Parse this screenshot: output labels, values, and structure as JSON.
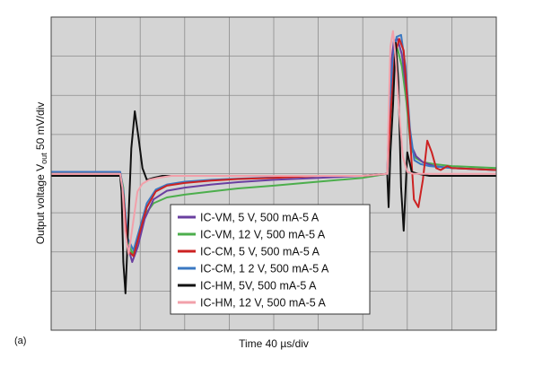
{
  "chart_data": {
    "type": "line",
    "panel_label": "(a)",
    "xlabel": "Time 40 µs/div",
    "ylabel": "Output voltage V",
    "ylabel_sub": "out",
    "ylabel_scale": "50 mV/div",
    "x_divisions": 10,
    "y_divisions": 8,
    "grid": true,
    "legend_position": "bottom-center",
    "series": [
      {
        "name": "IC-VM, 5 V, 500 mA-5 A",
        "color": "#6a3fa0",
        "x": [
          0,
          1.55,
          1.62,
          1.7,
          1.82,
          1.95,
          2.1,
          2.3,
          2.6,
          3.0,
          3.6,
          4.2,
          5.0,
          6.0,
          7.0,
          7.55,
          7.58,
          7.62,
          7.7,
          7.78,
          7.88,
          7.98,
          8.08,
          8.2,
          8.35,
          8.6,
          9.0,
          10
        ],
        "y": [
          0.1,
          0.1,
          -0.4,
          -1.7,
          -2.2,
          -1.8,
          -1.1,
          -0.6,
          -0.38,
          -0.3,
          -0.22,
          -0.16,
          -0.1,
          -0.05,
          0.0,
          0.05,
          1.2,
          2.7,
          3.45,
          3.5,
          3.1,
          2.2,
          0.8,
          0.5,
          0.35,
          0.25,
          0.2,
          0.15
        ]
      },
      {
        "name": "IC-VM, 12 V, 500 mA-5 A",
        "color": "#4cae4c",
        "x": [
          0,
          1.55,
          1.62,
          1.7,
          1.82,
          1.95,
          2.1,
          2.3,
          2.6,
          3.0,
          3.6,
          4.2,
          5.0,
          6.0,
          7.0,
          7.55,
          7.58,
          7.62,
          7.7,
          7.78,
          7.88,
          7.98,
          8.08,
          8.2,
          8.35,
          8.6,
          9.0,
          10
        ],
        "y": [
          0.08,
          0.08,
          -0.3,
          -1.5,
          -2.0,
          -1.6,
          -1.0,
          -0.7,
          -0.55,
          -0.48,
          -0.4,
          -0.32,
          -0.25,
          -0.15,
          -0.05,
          0.05,
          1.0,
          2.5,
          3.2,
          3.25,
          2.8,
          1.9,
          0.7,
          0.45,
          0.35,
          0.3,
          0.25,
          0.2
        ]
      },
      {
        "name": "IC-CM, 5 V, 500 mA-5 A",
        "color": "#cc2222",
        "x": [
          0,
          1.55,
          1.62,
          1.72,
          1.85,
          2.0,
          2.15,
          2.35,
          2.6,
          3.0,
          3.6,
          4.2,
          5.0,
          6.0,
          7.0,
          7.55,
          7.62,
          7.72,
          7.82,
          7.92,
          8.05,
          8.15,
          8.25,
          8.35,
          8.45,
          8.55,
          8.65,
          8.75,
          8.9,
          9.0,
          10
        ],
        "y": [
          0.05,
          0.05,
          -0.5,
          -1.9,
          -2.05,
          -1.4,
          -0.8,
          -0.4,
          -0.25,
          -0.18,
          -0.12,
          -0.08,
          -0.05,
          0.0,
          0.0,
          0.05,
          1.5,
          3.1,
          3.5,
          3.2,
          1.2,
          -0.6,
          -0.8,
          -0.1,
          0.9,
          0.6,
          0.2,
          0.15,
          0.25,
          0.2,
          0.15
        ]
      },
      {
        "name": "IC-CM, 1 2 V, 500 mA-5 A",
        "color": "#3a78c2",
        "x": [
          0,
          1.55,
          1.62,
          1.72,
          1.85,
          2.0,
          2.15,
          2.35,
          2.6,
          3.0,
          3.6,
          4.2,
          5.0,
          6.0,
          7.0,
          7.55,
          7.6,
          7.68,
          7.76,
          7.86,
          7.96,
          8.06,
          8.16,
          8.3,
          8.5,
          9.0,
          10
        ],
        "y": [
          0.1,
          0.1,
          -0.4,
          -1.6,
          -1.9,
          -1.3,
          -0.7,
          -0.35,
          -0.22,
          -0.15,
          -0.1,
          -0.07,
          -0.04,
          0.0,
          0.0,
          0.05,
          1.8,
          3.0,
          3.55,
          3.6,
          2.8,
          1.2,
          0.4,
          0.3,
          0.25,
          0.2,
          0.15
        ]
      },
      {
        "name": "IC-HM, 5V, 500 mA-5 A",
        "color": "#111111",
        "x": [
          0,
          1.55,
          1.58,
          1.62,
          1.67,
          1.72,
          1.8,
          1.88,
          1.96,
          2.05,
          2.15,
          2.3,
          2.5,
          3.0,
          4.0,
          5.0,
          6.0,
          7.0,
          7.55,
          7.58,
          7.62,
          7.68,
          7.74,
          7.8,
          7.86,
          7.92,
          8.0,
          8.1,
          8.25,
          8.5,
          9.0,
          10
        ],
        "y": [
          0.0,
          0.0,
          -0.4,
          -2.2,
          -3.0,
          -1.6,
          0.7,
          1.65,
          1.0,
          0.2,
          -0.1,
          -0.05,
          0.0,
          0.0,
          0.0,
          0.0,
          0.0,
          0.0,
          0.05,
          -0.8,
          0.6,
          1.8,
          3.4,
          2.4,
          -0.3,
          -1.4,
          0.6,
          0.1,
          0.05,
          0.0,
          0.0,
          0.0
        ]
      },
      {
        "name": "IC-HM, 12 V, 500 mA-5 A",
        "color": "#f2a0aa",
        "x": [
          0,
          1.55,
          1.6,
          1.66,
          1.74,
          1.84,
          1.94,
          2.05,
          2.2,
          2.4,
          2.7,
          3.0,
          4.0,
          5.0,
          6.0,
          7.0,
          7.55,
          7.58,
          7.62,
          7.68,
          7.74,
          7.82,
          7.9,
          8.0,
          8.15,
          8.4,
          9.0,
          10
        ],
        "y": [
          0.05,
          0.05,
          -0.3,
          -1.4,
          -2.0,
          -1.2,
          -0.4,
          -0.2,
          -0.1,
          -0.05,
          0.0,
          0.0,
          0.0,
          0.0,
          0.0,
          0.0,
          0.05,
          1.5,
          3.3,
          3.7,
          3.0,
          1.6,
          0.5,
          0.1,
          0.05,
          0.05,
          0.05,
          0.05
        ]
      }
    ]
  }
}
